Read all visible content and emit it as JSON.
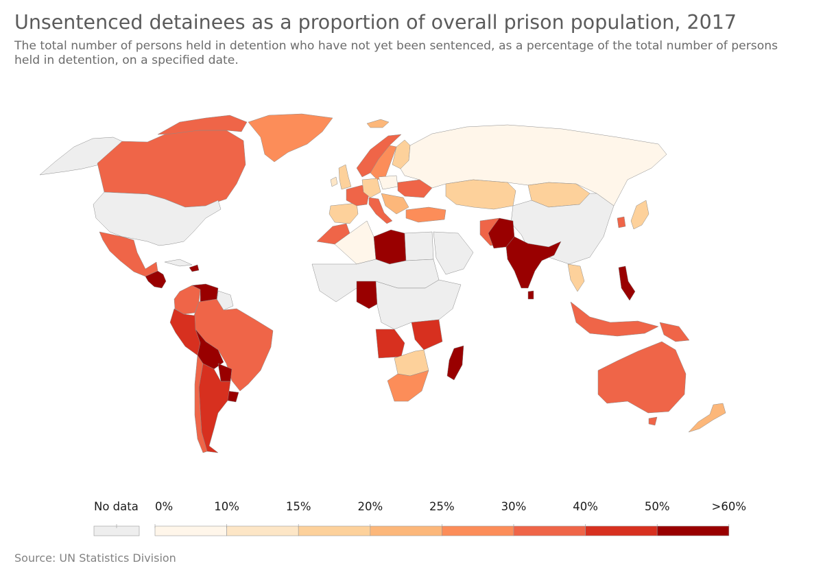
{
  "title": "Unsentenced detainees as a proportion of overall prison population, 2017",
  "subtitle": "The total number of persons held in detention who have not yet been sentenced, as a percentage of the total number of persons held in detention, on a specified date.",
  "source": "Source: UN Statistics Division",
  "legend": {
    "no_data_label": "No data",
    "no_data_color": "#eeeeee",
    "tick_labels": [
      "0%",
      "10%",
      "15%",
      "20%",
      "25%",
      "30%",
      "40%",
      "50%",
      ">60%"
    ],
    "bins": [
      {
        "min": 0,
        "max": 10,
        "color": "#fff6ea"
      },
      {
        "min": 10,
        "max": 15,
        "color": "#fde6c6"
      },
      {
        "min": 15,
        "max": 20,
        "color": "#fdd19b"
      },
      {
        "min": 20,
        "max": 25,
        "color": "#fcb77a"
      },
      {
        "min": 25,
        "max": 30,
        "color": "#fc8d59"
      },
      {
        "min": 30,
        "max": 40,
        "color": "#ef6548"
      },
      {
        "min": 40,
        "max": 50,
        "color": "#d7301f"
      },
      {
        "min": 50,
        "max": 60,
        "color": "#990000"
      }
    ]
  },
  "map_data": {
    "type": "choropleth",
    "year": 2017,
    "regions": [
      {
        "name": "Alaska",
        "bin": "No data"
      },
      {
        "name": "Canada",
        "bin": "30-40%"
      },
      {
        "name": "Greenland",
        "bin": "25-30%"
      },
      {
        "name": "United States",
        "bin": "No data"
      },
      {
        "name": "Mexico",
        "bin": "30-40%"
      },
      {
        "name": "Central America",
        "bin": ">60%"
      },
      {
        "name": "Haiti",
        "bin": ">60%"
      },
      {
        "name": "Cuba",
        "bin": "No data"
      },
      {
        "name": "Venezuela",
        "bin": ">60%"
      },
      {
        "name": "Colombia",
        "bin": "30-40%"
      },
      {
        "name": "Guyana",
        "bin": "No data"
      },
      {
        "name": "Peru",
        "bin": "40-50%"
      },
      {
        "name": "Brazil",
        "bin": "30-40%"
      },
      {
        "name": "Bolivia",
        "bin": ">60%"
      },
      {
        "name": "Paraguay",
        "bin": ">60%"
      },
      {
        "name": "Argentina",
        "bin": "40-50%"
      },
      {
        "name": "Chile",
        "bin": "30-40%"
      },
      {
        "name": "Uruguay",
        "bin": ">60%"
      },
      {
        "name": "Iceland",
        "bin": "20-25%"
      },
      {
        "name": "Ireland",
        "bin": "10-15%"
      },
      {
        "name": "United Kingdom",
        "bin": "15-20%"
      },
      {
        "name": "Norway",
        "bin": "30-40%"
      },
      {
        "name": "Sweden",
        "bin": "25-30%"
      },
      {
        "name": "Finland",
        "bin": "15-20%"
      },
      {
        "name": "Spain",
        "bin": "15-20%"
      },
      {
        "name": "France",
        "bin": "30-40%"
      },
      {
        "name": "Germany",
        "bin": "15-20%"
      },
      {
        "name": "Poland",
        "bin": "0-10%"
      },
      {
        "name": "Italy",
        "bin": "30-40%"
      },
      {
        "name": "Ukraine",
        "bin": "30-40%"
      },
      {
        "name": "Turkey",
        "bin": "25-30%"
      },
      {
        "name": "Russia",
        "bin": "0-10%"
      },
      {
        "name": "Kazakhstan",
        "bin": "15-20%"
      },
      {
        "name": "Mongolia",
        "bin": "15-20%"
      },
      {
        "name": "China",
        "bin": "No data"
      },
      {
        "name": "Japan",
        "bin": "15-20%"
      },
      {
        "name": "South Korea",
        "bin": "30-40%"
      },
      {
        "name": "Morocco",
        "bin": "30-40%"
      },
      {
        "name": "Algeria",
        "bin": "0-10%"
      },
      {
        "name": "Libya",
        "bin": ">60%"
      },
      {
        "name": "Egypt",
        "bin": "No data"
      },
      {
        "name": "Nigeria",
        "bin": ">60%"
      },
      {
        "name": "Angola",
        "bin": "40-50%"
      },
      {
        "name": "Tanzania",
        "bin": "40-50%"
      },
      {
        "name": "Madagascar",
        "bin": ">60%"
      },
      {
        "name": "South Africa",
        "bin": "25-30%"
      },
      {
        "name": "Iran",
        "bin": "30-40%"
      },
      {
        "name": "Saudi Arabia",
        "bin": "No data"
      },
      {
        "name": "India",
        "bin": ">60%"
      },
      {
        "name": "Pakistan",
        "bin": ">60%"
      },
      {
        "name": "Sri Lanka",
        "bin": ">60%"
      },
      {
        "name": "Thailand",
        "bin": "15-20%"
      },
      {
        "name": "Philippines",
        "bin": ">60%"
      },
      {
        "name": "Indonesia",
        "bin": "30-40%"
      },
      {
        "name": "Papua New Guinea",
        "bin": "30-40%"
      },
      {
        "name": "Australia",
        "bin": "30-40%"
      },
      {
        "name": "New Zealand",
        "bin": "20-25%"
      }
    ]
  }
}
